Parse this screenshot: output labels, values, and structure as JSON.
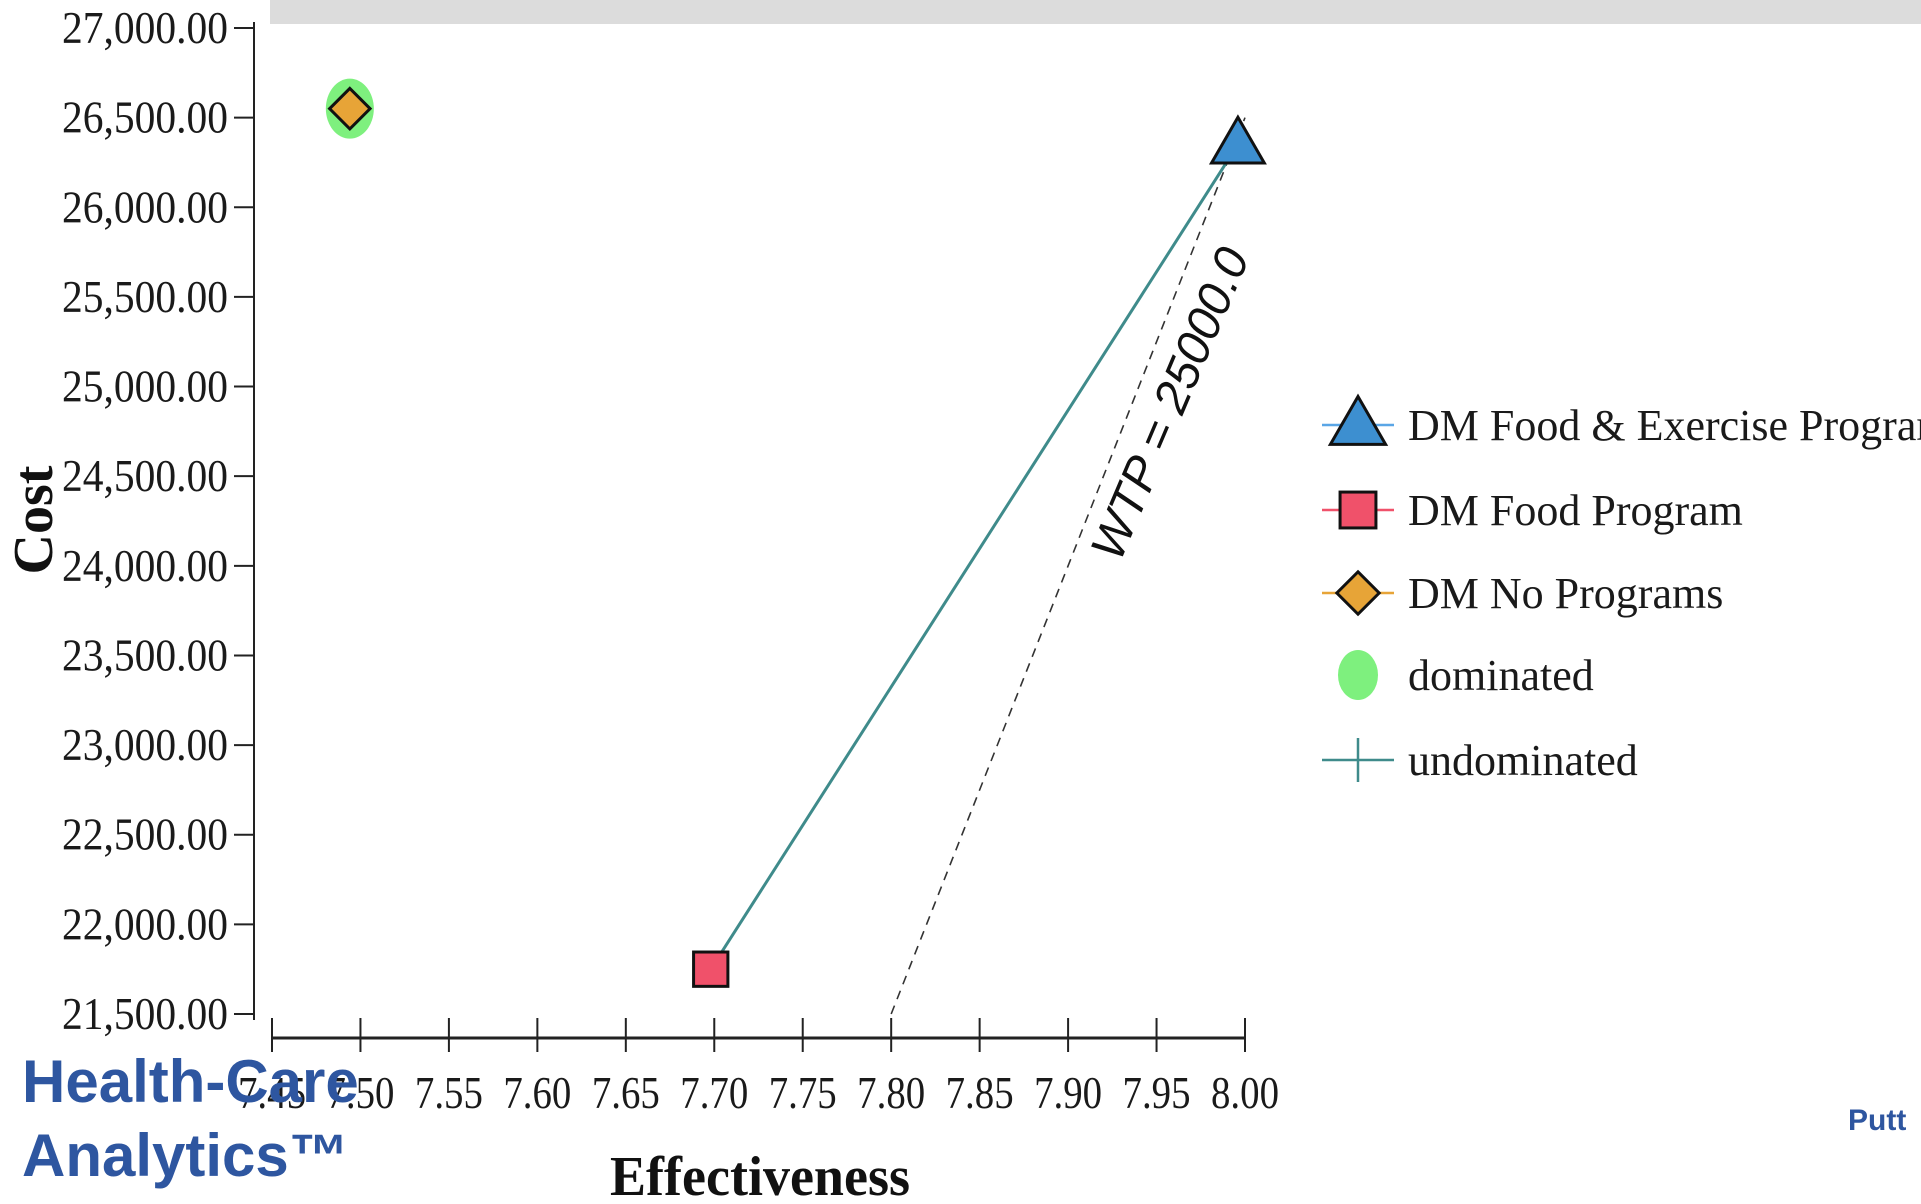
{
  "chart_data": {
    "type": "scatter",
    "title": "",
    "xlabel": "Effectiveness",
    "ylabel": "Cost",
    "xlim": [
      7.45,
      8.0
    ],
    "ylim": [
      21500,
      27000
    ],
    "x_ticks": [
      "7.45",
      "7.50",
      "7.55",
      "7.60",
      "7.65",
      "7.70",
      "7.75",
      "7.80",
      "7.85",
      "7.90",
      "7.95",
      "8.00"
    ],
    "y_ticks": [
      "27,000.00",
      "26,500.00",
      "26,000.00",
      "25,500.00",
      "25,000.00",
      "24,500.00",
      "24,000.00",
      "23,500.00",
      "23,000.00",
      "22,500.00",
      "22,000.00",
      "21,500.00"
    ],
    "series": [
      {
        "name": "DM Food & Exercise Programs",
        "marker": "triangle",
        "color": "#3d8fd0",
        "line_color": "#5aa6e6",
        "x": 7.996,
        "y": 26350
      },
      {
        "name": "DM Food Program",
        "marker": "square",
        "color": "#f0516a",
        "line_color": "#f0516a",
        "x": 7.698,
        "y": 21750
      },
      {
        "name": "DM No Programs",
        "marker": "diamond",
        "color": "#e7a437",
        "line_color": "#e7a437",
        "x": 7.494,
        "y": 26550
      }
    ],
    "dominated": {
      "name": "dominated",
      "color": "#7ef07e",
      "points": [
        [
          7.494,
          26550
        ]
      ]
    },
    "undominated": {
      "name": "undominated",
      "color": "#3f8b8b",
      "points": [
        [
          7.698,
          21750
        ],
        [
          7.996,
          26350
        ]
      ]
    },
    "wtp_line": {
      "label": "WTP = 25000.0",
      "points": [
        [
          7.8,
          21500
        ],
        [
          8.0,
          26500
        ]
      ]
    },
    "legend_position": "right",
    "grid": false
  },
  "branding": {
    "line1": "Health-Care",
    "line2": "Analytics™",
    "footer_right": "Putt"
  }
}
